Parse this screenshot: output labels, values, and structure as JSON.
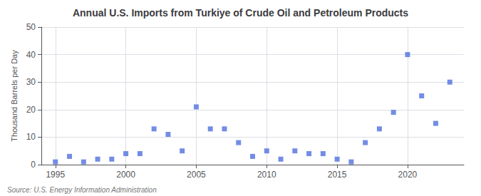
{
  "chart_data": {
    "type": "scatter",
    "title": "Annual U.S. Imports from Turkiye of Crude Oil and Petroleum Products",
    "ylabel": "Thousand Barrels per Day",
    "annotations": [
      "Source: U.S. Energy Information Administration"
    ],
    "x": [
      1995,
      1996,
      1997,
      1998,
      1999,
      2000,
      2001,
      2002,
      2003,
      2004,
      2005,
      2006,
      2007,
      2008,
      2009,
      2010,
      2011,
      2012,
      2013,
      2014,
      2015,
      2016,
      2017,
      2018,
      2019,
      2020,
      2021,
      2022,
      2023
    ],
    "values": [
      1,
      3,
      1,
      2,
      2,
      4,
      4,
      13,
      11,
      5,
      21,
      13,
      13,
      8,
      3,
      5,
      2,
      5,
      4,
      4,
      2,
      1,
      8,
      13,
      19,
      40,
      25,
      15,
      30
    ],
    "marker": "square",
    "xlim": [
      1994,
      2024
    ],
    "xticks": [
      1995,
      2000,
      2005,
      2010,
      2015,
      2020
    ],
    "ylim": [
      0,
      50
    ],
    "yticks": [
      0,
      10,
      20,
      30,
      40,
      50
    ],
    "grid": true
  }
}
